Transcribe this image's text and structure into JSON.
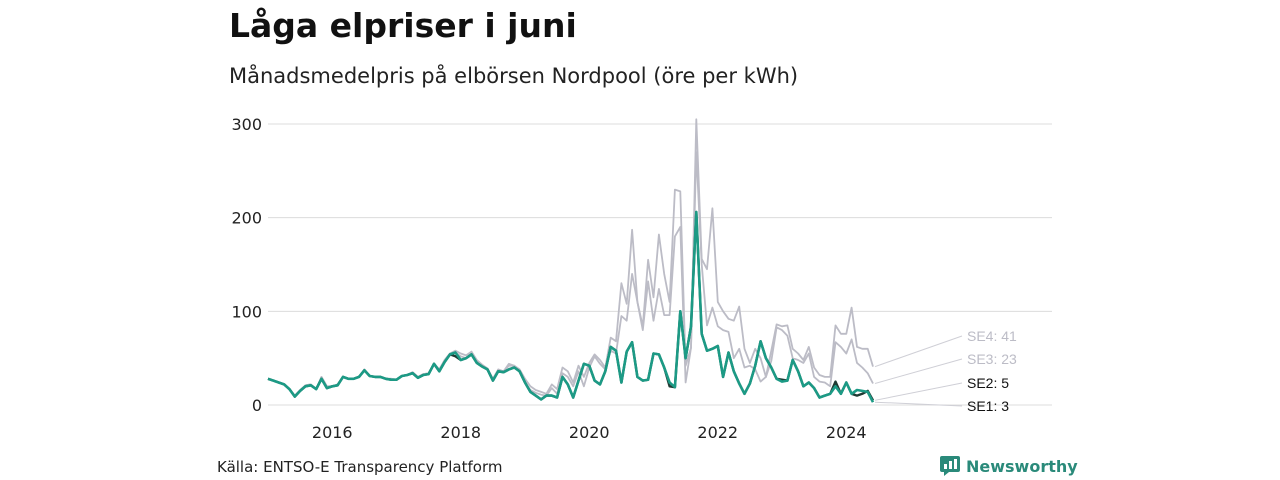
{
  "title": "Låga elpriser i juni",
  "subtitle": "Månadsmedelpris på elbörsen Nordpool (öre per kWh)",
  "source": "Källa: ENTSO-E Transparency Platform",
  "brand": {
    "name": "Newsworthy",
    "logo_icon": "newsworthy-logo-icon"
  },
  "colors": {
    "SE1": "#1c9a85",
    "SE2": "#1f3a33",
    "SE3": "#bcbcc6",
    "SE4": "#bcbcc6",
    "grid": "#dcdcdc"
  },
  "chart_data": {
    "type": "line",
    "x_start": "2015-01",
    "x_end": "2025-06",
    "x_ticks": [
      "2016",
      "2018",
      "2020",
      "2022",
      "2024"
    ],
    "y_ticks": [
      "0",
      "100",
      "200",
      "300"
    ],
    "ylim": [
      0,
      310
    ],
    "grid": true,
    "series": [
      {
        "name": "SE4",
        "end_label": "SE4: 41",
        "values": [
          28,
          26,
          24,
          22,
          17,
          10,
          16,
          21,
          22,
          17,
          30,
          20,
          20,
          22,
          30,
          28,
          28,
          30,
          38,
          31,
          30,
          30,
          28,
          28,
          27,
          31,
          32,
          35,
          30,
          33,
          34,
          44,
          38,
          48,
          55,
          58,
          55,
          53,
          57,
          48,
          43,
          39,
          28,
          38,
          36,
          44,
          42,
          38,
          28,
          20,
          16,
          14,
          12,
          22,
          17,
          40,
          36,
          24,
          42,
          30,
          45,
          54,
          48,
          40,
          72,
          68,
          130,
          108,
          187,
          110,
          84,
          155,
          115,
          182,
          140,
          110,
          230,
          228,
          42,
          61,
          305,
          156,
          145,
          210,
          110,
          100,
          92,
          90,
          105,
          60,
          45,
          60,
          50,
          30,
          58,
          86,
          84,
          85,
          60,
          55,
          48,
          62,
          40,
          32,
          30,
          30,
          85,
          76,
          76,
          104,
          62,
          60,
          60,
          41
        ]
      },
      {
        "name": "SE3",
        "end_label": "SE3: 23",
        "values": [
          28,
          26,
          24,
          22,
          17,
          10,
          16,
          21,
          22,
          17,
          30,
          20,
          20,
          22,
          30,
          28,
          28,
          30,
          38,
          31,
          30,
          30,
          28,
          28,
          27,
          31,
          32,
          35,
          30,
          33,
          34,
          44,
          38,
          48,
          55,
          56,
          52,
          50,
          55,
          46,
          42,
          39,
          28,
          37,
          36,
          42,
          42,
          36,
          24,
          16,
          13,
          11,
          10,
          18,
          12,
          34,
          30,
          20,
          36,
          20,
          40,
          52,
          44,
          38,
          58,
          55,
          95,
          90,
          140,
          110,
          80,
          132,
          90,
          124,
          96,
          96,
          180,
          190,
          24,
          61,
          270,
          150,
          85,
          104,
          84,
          80,
          78,
          50,
          60,
          40,
          42,
          38,
          25,
          30,
          47,
          83,
          80,
          74,
          50,
          48,
          45,
          55,
          30,
          25,
          24,
          20,
          67,
          62,
          55,
          70,
          45,
          40,
          34,
          23
        ]
      },
      {
        "name": "SE2",
        "end_label": "SE2: 5",
        "values": [
          28,
          26,
          24,
          22,
          17,
          9,
          15,
          20,
          21,
          17,
          28,
          18,
          20,
          21,
          30,
          28,
          28,
          30,
          37,
          31,
          30,
          30,
          28,
          27,
          27,
          31,
          32,
          34,
          29,
          32,
          33,
          44,
          36,
          46,
          54,
          52,
          48,
          50,
          54,
          45,
          41,
          38,
          26,
          36,
          35,
          38,
          40,
          36,
          24,
          14,
          10,
          6,
          10,
          10,
          8,
          30,
          22,
          8,
          26,
          44,
          42,
          26,
          22,
          36,
          62,
          58,
          24,
          57,
          67,
          30,
          26,
          27,
          55,
          54,
          40,
          20,
          19,
          100,
          50,
          84,
          206,
          76,
          58,
          60,
          63,
          30,
          56,
          36,
          23,
          12,
          23,
          42,
          68,
          50,
          40,
          28,
          27,
          26,
          48,
          36,
          20,
          24,
          18,
          8,
          10,
          12,
          25,
          12,
          24,
          12,
          10,
          12,
          15,
          5
        ]
      },
      {
        "name": "SE1",
        "end_label": "SE1: 3",
        "values": [
          28,
          26,
          24,
          22,
          17,
          9,
          15,
          20,
          21,
          17,
          28,
          18,
          20,
          21,
          30,
          28,
          28,
          30,
          37,
          31,
          30,
          30,
          28,
          27,
          27,
          31,
          32,
          34,
          29,
          32,
          33,
          44,
          36,
          46,
          54,
          56,
          48,
          50,
          54,
          45,
          41,
          38,
          26,
          36,
          35,
          38,
          40,
          36,
          24,
          14,
          10,
          6,
          10,
          10,
          8,
          30,
          22,
          8,
          26,
          44,
          42,
          26,
          22,
          36,
          62,
          58,
          24,
          57,
          67,
          30,
          26,
          27,
          55,
          54,
          40,
          24,
          19,
          100,
          50,
          84,
          206,
          76,
          58,
          60,
          63,
          30,
          56,
          36,
          23,
          12,
          23,
          42,
          68,
          50,
          40,
          28,
          25,
          26,
          48,
          36,
          20,
          24,
          18,
          8,
          10,
          12,
          20,
          12,
          24,
          12,
          16,
          15,
          14,
          3
        ]
      }
    ]
  }
}
